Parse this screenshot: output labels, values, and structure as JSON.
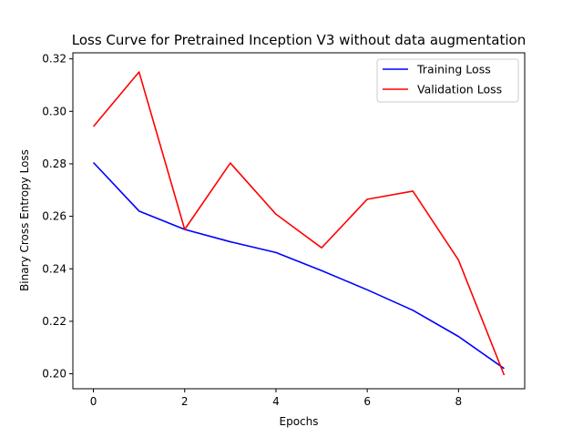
{
  "chart_data": {
    "type": "line",
    "title": "Loss Curve for Pretrained Inception V3 without data augmentation",
    "xlabel": "Epochs",
    "ylabel": "Binary Cross Entropy Loss",
    "x": [
      0,
      1,
      2,
      3,
      4,
      5,
      6,
      7,
      8,
      9
    ],
    "xlim": [
      -0.45,
      9.45
    ],
    "ylim": [
      0.1943,
      0.3223
    ],
    "xticks": [
      0,
      2,
      4,
      6,
      8
    ],
    "xtick_labels": [
      "0",
      "2",
      "4",
      "6",
      "8"
    ],
    "yticks": [
      0.2,
      0.22,
      0.24,
      0.26,
      0.28,
      0.3,
      0.32
    ],
    "ytick_labels": [
      "0.20",
      "0.22",
      "0.24",
      "0.26",
      "0.28",
      "0.30",
      "0.32"
    ],
    "grid": false,
    "legend_position": "top-right",
    "series": [
      {
        "name": "Training Loss",
        "color": "#0000ff",
        "values": [
          0.2805,
          0.262,
          0.255,
          0.2503,
          0.2462,
          0.2393,
          0.232,
          0.2242,
          0.2142,
          0.202
        ]
      },
      {
        "name": "Validation Loss",
        "color": "#ff0000",
        "values": [
          0.2942,
          0.315,
          0.255,
          0.2803,
          0.2608,
          0.248,
          0.2665,
          0.2696,
          0.2433,
          0.1995
        ]
      }
    ]
  }
}
